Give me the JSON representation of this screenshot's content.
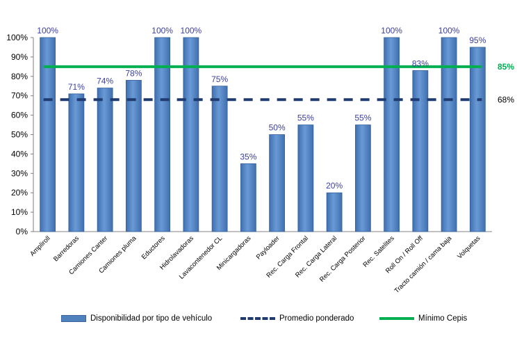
{
  "chart_data": {
    "type": "bar",
    "categories": [
      "Ampliroll",
      "Barredoras",
      "Camiones Canter",
      "Camiones pluma",
      "Eductores",
      "Hidrolavadoras",
      "Lavacontenedor CL",
      "Minicargadoras",
      "Payloader",
      "Rec. Carga Frontal",
      "Rec. Carga Lateral",
      "Rec. Carga Posterior",
      "Rec. Satelites",
      "Roll On / Roll Off",
      "Tracto camión / cama baja",
      "Volquetas"
    ],
    "series": [
      {
        "name": "Disponibilidad por tipo de vehículo",
        "values": [
          100,
          71,
          74,
          78,
          100,
          100,
          75,
          35,
          50,
          55,
          20,
          55,
          100,
          83,
          100,
          95
        ],
        "labels": [
          "100%",
          "71%",
          "74%",
          "78%",
          "100%",
          "100%",
          "75%",
          "35%",
          "50%",
          "55%",
          "20%",
          "55%",
          "100%",
          "83%",
          "100%",
          "95%"
        ],
        "color": "#4f81bd"
      }
    ],
    "reference_lines": [
      {
        "name": "Promedio ponderado",
        "value": 68,
        "label": "68%",
        "style": "dashed",
        "color": "#1f3b70",
        "label_color": "#000000"
      },
      {
        "name": "Mínimo Cepis",
        "value": 85,
        "label": "85%",
        "style": "solid",
        "color": "#00b050",
        "label_color": "#00b050"
      }
    ],
    "ylim": [
      0,
      100
    ],
    "yticks": [
      0,
      10,
      20,
      30,
      40,
      50,
      60,
      70,
      80,
      90,
      100
    ],
    "ytick_labels": [
      "0%",
      "10%",
      "20%",
      "30%",
      "40%",
      "50%",
      "60%",
      "70%",
      "80%",
      "90%",
      "100%"
    ],
    "grid": false,
    "legend_position": "bottom"
  },
  "legend": {
    "bar_label": "Disponibilidad por tipo de vehículo",
    "dash_label": "Promedio ponderado",
    "line_label": "Mínimo Cepis"
  }
}
